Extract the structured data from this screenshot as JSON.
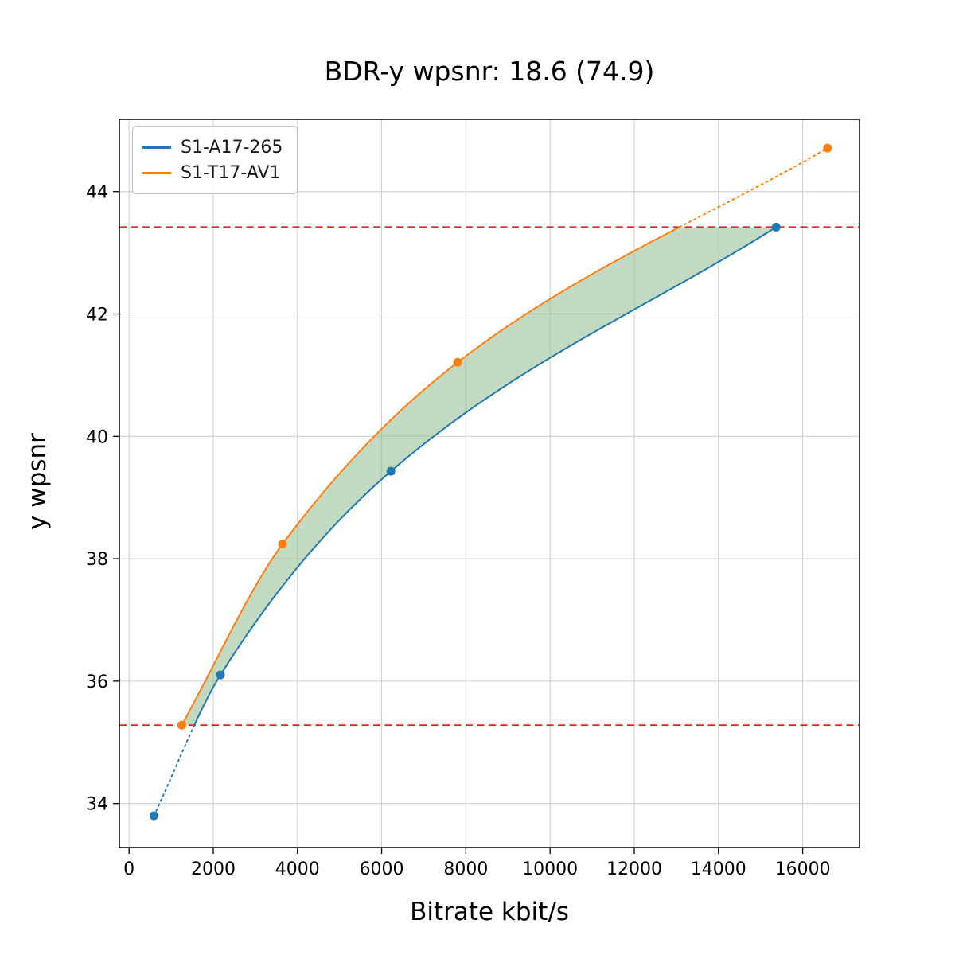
{
  "title": "BDR-y wpsnr: 18.6 (74.9)",
  "chart_data": {
    "type": "line",
    "title": "BDR-y wpsnr: 18.6 (74.9)",
    "xlabel": "Bitrate kbit/s",
    "ylabel": "y wpsnr",
    "xlim": [
      -230,
      17350
    ],
    "ylim": [
      33.28,
      45.18
    ],
    "xticks": [
      0,
      2000,
      4000,
      6000,
      8000,
      10000,
      12000,
      14000,
      16000
    ],
    "yticks": [
      34,
      36,
      38,
      40,
      42,
      44
    ],
    "grid": true,
    "grid_color": "#cccccc",
    "legend_position": "upper-left",
    "series": [
      {
        "name": "S1-A17-265",
        "color": "#1f77b4",
        "x": [
          590,
          2170,
          6220,
          15370
        ],
        "y": [
          33.8,
          36.1,
          39.43,
          43.42
        ]
      },
      {
        "name": "S1-T17-AV1",
        "color": "#ff7f0e",
        "x": [
          1250,
          3645,
          7805,
          16590
        ],
        "y": [
          35.28,
          38.24,
          41.21,
          44.71
        ]
      }
    ],
    "hlines": [
      {
        "y": 35.28,
        "color": "#e52222",
        "style": "dashed"
      },
      {
        "y": 43.42,
        "color": "#e52222",
        "style": "dashed"
      }
    ],
    "overlap": {
      "ymin": 35.28,
      "ymax": 43.42
    },
    "fill_between": {
      "color": "#8fbc8f",
      "alpha": 0.55
    },
    "bdr_value": "18.6",
    "bdr_percent": "74.9"
  }
}
